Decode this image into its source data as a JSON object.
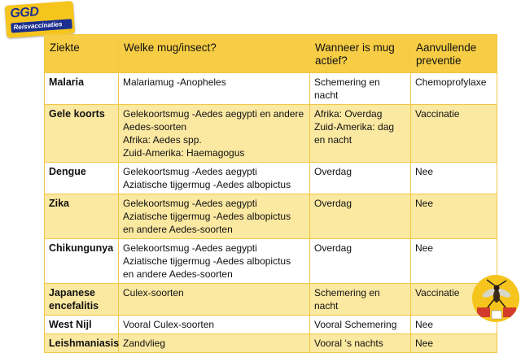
{
  "logo": {
    "brand": "GGD",
    "subtitle": "Reisvaccinaties"
  },
  "table": {
    "headers": [
      "Ziekte",
      "Welke mug/insect?",
      "Wanneer is mug actief?",
      "Aanvullende preventie"
    ],
    "rows": [
      {
        "disease": "Malaria",
        "vector": [
          "Malariamug -Anopheles"
        ],
        "active": "Schemering en nacht",
        "prevention": "Chemoprofylaxe"
      },
      {
        "disease": "Gele koorts",
        "vector": [
          "Gelekoortsmug -Aedes aegypti en andere",
          "Aedes-soorten",
          "Afrika: Aedes spp.",
          "Zuid-Amerika: Haemagogus"
        ],
        "active": "Afrika: Overdag Zuid-Amerika: dag en nacht",
        "prevention": "Vaccinatie"
      },
      {
        "disease": "Dengue",
        "vector": [
          "Gelekoortsmug -Aedes aegypti",
          "Aziatische tijgermug -Aedes albopictus"
        ],
        "active": "Overdag",
        "prevention": "Nee"
      },
      {
        "disease": "Zika",
        "vector": [
          "Gelekoortsmug -Aedes aegypti",
          "Aziatische tijgermug -Aedes albopictus",
          "en andere Aedes-soorten"
        ],
        "active": "Overdag",
        "prevention": "Nee"
      },
      {
        "disease": "Chikungunya",
        "vector": [
          "Gelekoortsmug -Aedes aegypti",
          "Aziatische tijgermug -Aedes albopictus",
          "en andere Aedes-soorten"
        ],
        "active": "Overdag",
        "prevention": "Nee"
      },
      {
        "disease": "Japanese encefalitis",
        "vector": [
          "Culex-soorten"
        ],
        "active": "Schemering en nacht",
        "prevention": "Vaccinatie"
      },
      {
        "disease": "West Nijl",
        "vector": [
          "Vooral Culex-soorten"
        ],
        "active": "Vooral Schemering",
        "prevention": "Nee"
      },
      {
        "disease": "Leishmaniasis",
        "vector": [
          "Zandvlieg"
        ],
        "active": "Vooral ‘s nachts",
        "prevention": "Nee"
      }
    ]
  },
  "icons": {
    "badge": "mosquito-icon"
  },
  "colors": {
    "header": "#f6cd45",
    "stripe": "#fbe8a1",
    "border": "#f2c744",
    "logo_blue": "#1b2f8f",
    "logo_yellow": "#f6c51d"
  }
}
